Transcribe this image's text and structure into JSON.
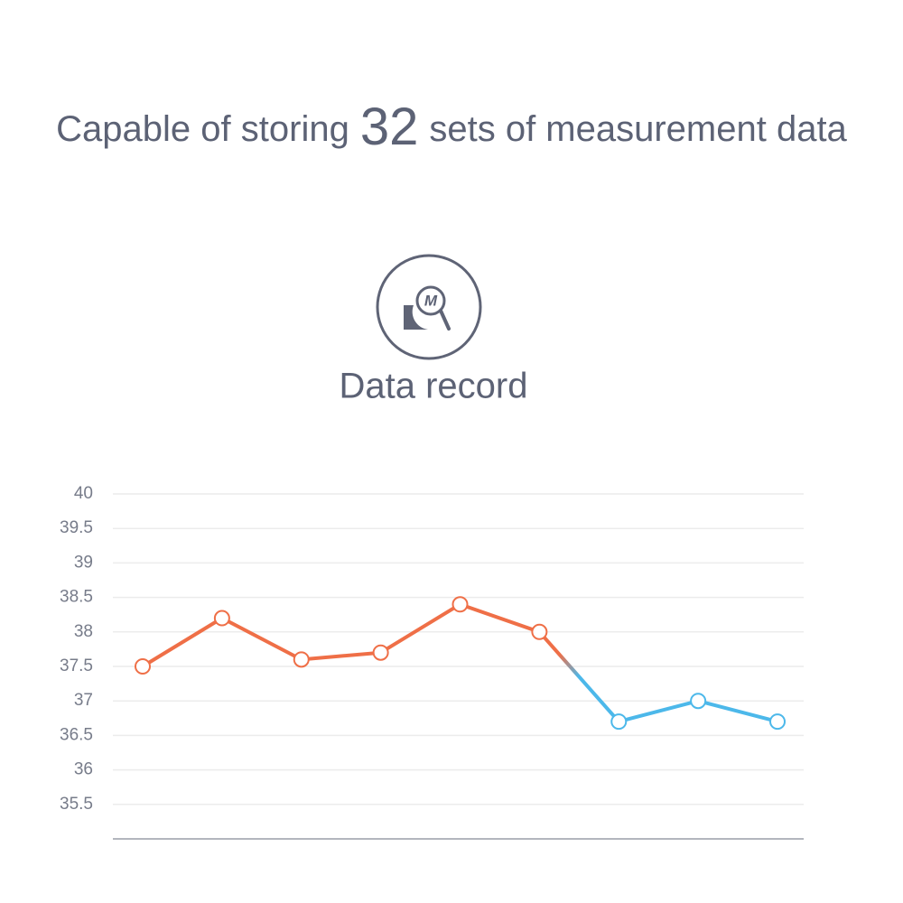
{
  "headline": {
    "before": "Capable of storing",
    "number": 32,
    "after": "sets of measurement data"
  },
  "icon": {
    "label": "M"
  },
  "chart_data": {
    "type": "line",
    "title": "Data record",
    "categories": [
      null,
      null,
      null,
      null,
      null,
      null,
      null,
      null,
      null
    ],
    "series": [
      {
        "values": [
          37.5,
          38.2,
          37.6,
          37.7,
          38.4,
          38.0,
          36.7,
          37.0,
          36.7
        ],
        "colors": [
          "#ef6f47",
          "#ef6f47",
          "#ef6f47",
          "#ef6f47",
          "#ef6f47",
          "#ef6f47",
          "#4cb8ea",
          "#4cb8ea",
          "#4cb8ea"
        ]
      }
    ],
    "ylim": [
      35,
      40
    ],
    "yticks": [
      35.5,
      36,
      36.5,
      37,
      37.5,
      38,
      38.5,
      39,
      39.5,
      40
    ],
    "grid": true
  }
}
